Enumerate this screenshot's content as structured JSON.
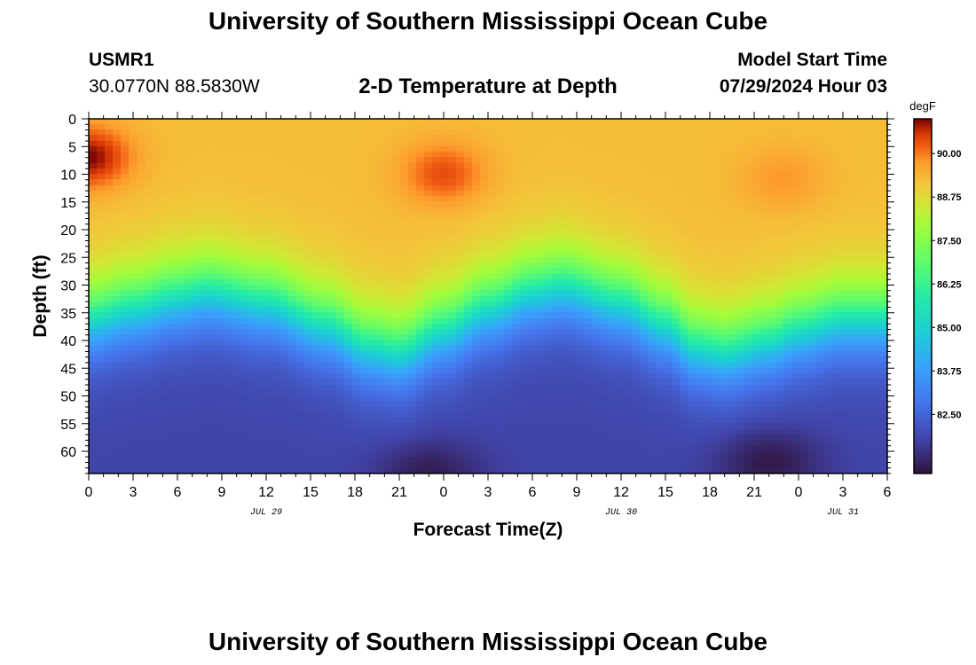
{
  "header": {
    "title": "University of Southern Mississippi Ocean Cube",
    "station_id": "USMR1",
    "coordinates": "30.0770N  88.5830W",
    "chart_title": "2-D Temperature at Depth",
    "model_start_label": "Model Start Time",
    "model_start_value": "07/29/2024 Hour 03"
  },
  "footer": {
    "title": "University of Southern Mississippi Ocean Cube"
  },
  "chart_data": {
    "type": "heatmap",
    "title": "2-D Temperature at Depth",
    "xlabel": "Forecast Time(Z)",
    "ylabel": "Depth (ft)",
    "x_range_hours": [
      0,
      54
    ],
    "y_range_ft": [
      0,
      64
    ],
    "x_tick_labels": [
      "0",
      "3",
      "6",
      "9",
      "12",
      "15",
      "18",
      "21",
      "0",
      "3",
      "6",
      "9",
      "12",
      "15",
      "18",
      "21",
      "0",
      "3",
      "6"
    ],
    "x_tick_hours": [
      0,
      3,
      6,
      9,
      12,
      15,
      18,
      21,
      24,
      27,
      30,
      33,
      36,
      39,
      42,
      45,
      48,
      51,
      54
    ],
    "y_tick_labels": [
      "0",
      "5",
      "10",
      "15",
      "20",
      "25",
      "30",
      "35",
      "40",
      "45",
      "50",
      "55",
      "60"
    ],
    "y_tick_values": [
      0,
      5,
      10,
      15,
      20,
      25,
      30,
      35,
      40,
      45,
      50,
      55,
      60
    ],
    "date_labels": [
      {
        "text": "JUL 29",
        "hour": 12
      },
      {
        "text": "JUL 30",
        "hour": 36
      },
      {
        "text": "JUL 31",
        "hour": 51
      }
    ],
    "colorbar": {
      "unit": "degF",
      "range": [
        80.8,
        91.0
      ],
      "tick_labels": [
        "90.00",
        "88.75",
        "87.50",
        "86.25",
        "85.00",
        "83.75",
        "82.50"
      ],
      "tick_values": [
        90.0,
        88.75,
        87.5,
        86.25,
        85.0,
        83.75,
        82.5
      ]
    },
    "surface_layer_temp_degF": 89.3,
    "bottom_layer_temp_degF": 81.8,
    "thermocline_depth_ft": {
      "hours": [
        0,
        3,
        6,
        8,
        12,
        16,
        19,
        21,
        24,
        27,
        30,
        32,
        36,
        39,
        41,
        43,
        46,
        48,
        51,
        54
      ],
      "depths": [
        36,
        34,
        32,
        31,
        33,
        37,
        41,
        42,
        38,
        34,
        31,
        30,
        33,
        37,
        41,
        42,
        40,
        38,
        36,
        36
      ]
    },
    "warm_spots": [
      {
        "hour": 0,
        "depth_ft": 7,
        "temp_degF": 91.0
      },
      {
        "hour": 24,
        "depth_ft": 10,
        "temp_degF": 90.4
      },
      {
        "hour": 47,
        "depth_ft": 11,
        "temp_degF": 89.8
      }
    ],
    "cold_spots": [
      {
        "hour": 23,
        "depth_ft": 64,
        "temp_degF": 81.0
      },
      {
        "hour": 46,
        "depth_ft": 62,
        "temp_degF": 80.9
      }
    ]
  }
}
